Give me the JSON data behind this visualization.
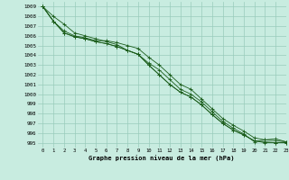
{
  "title": "Graphe pression niveau de la mer (hPa)",
  "background_color": "#c8ece0",
  "grid_color": "#99ccbb",
  "line_color": "#1a5c1a",
  "marker_color": "#1a5c1a",
  "xlim": [
    -0.5,
    23
  ],
  "ylim": [
    994.5,
    1009.5
  ],
  "yticks": [
    995,
    996,
    997,
    998,
    999,
    1000,
    1001,
    1002,
    1003,
    1004,
    1005,
    1006,
    1007,
    1008,
    1009
  ],
  "xticks": [
    0,
    1,
    2,
    3,
    4,
    5,
    6,
    7,
    8,
    9,
    10,
    11,
    12,
    13,
    14,
    15,
    16,
    17,
    18,
    19,
    20,
    21,
    22,
    23
  ],
  "series": [
    [
      1009.0,
      1008.0,
      1007.2,
      1006.3,
      1006.0,
      1005.7,
      1005.4,
      1005.1,
      1004.5,
      1004.1,
      1003.2,
      1002.5,
      1001.5,
      1000.5,
      1000.0,
      999.2,
      998.2,
      997.2,
      996.5,
      995.9,
      995.1,
      995.3,
      995.4,
      995.1
    ],
    [
      1009.0,
      1007.5,
      1006.5,
      1006.0,
      1005.8,
      1005.5,
      1005.5,
      1005.3,
      1005.0,
      1004.7,
      1003.8,
      1003.0,
      1002.0,
      1001.0,
      1000.5,
      999.5,
      998.5,
      997.5,
      996.8,
      996.2,
      995.5,
      995.3,
      995.2,
      995.1
    ],
    [
      1009.0,
      1007.5,
      1006.3,
      1005.9,
      1005.7,
      1005.4,
      1005.2,
      1004.9,
      1004.5,
      1004.1,
      1003.0,
      1002.0,
      1001.0,
      1000.2,
      999.7,
      998.9,
      997.9,
      997.0,
      996.3,
      995.8,
      995.2,
      995.1,
      995.0,
      995.0
    ],
    [
      1009.0,
      1007.5,
      1006.3,
      1005.9,
      1005.7,
      1005.4,
      1005.2,
      1004.9,
      1004.5,
      1004.1,
      1003.0,
      1002.0,
      1001.0,
      1000.2,
      999.7,
      998.9,
      997.9,
      997.0,
      996.3,
      995.8,
      995.2,
      995.0,
      995.0,
      995.0
    ]
  ]
}
